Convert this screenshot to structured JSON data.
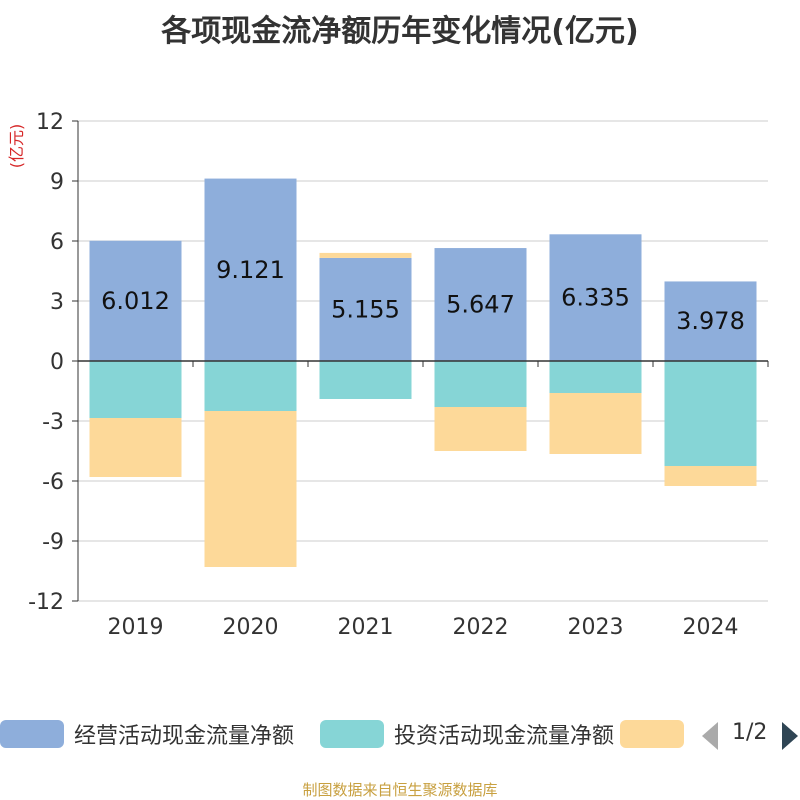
{
  "title": "各项现金流净额历年变化情况(亿元)",
  "source": "制图数据来自恒生聚源数据库",
  "pager": {
    "text": "1/2"
  },
  "legend": [
    {
      "label": "经营活动现金流量净额",
      "color": "#8eaedb"
    },
    {
      "label": "投资活动现金流量净额",
      "color": "#86d5d6"
    },
    {
      "label": "",
      "color": "#fdd999"
    }
  ],
  "chart_data": {
    "type": "bar",
    "stacked": true,
    "title": "各项现金流净额历年变化情况(亿元)",
    "ylabel": "(亿元)",
    "ylim": [
      -12,
      12
    ],
    "yticks": [
      12,
      9,
      6,
      3,
      0,
      -3,
      -6,
      -9,
      -12
    ],
    "grid": true,
    "legend_position": "bottom",
    "categories": [
      "2019",
      "2020",
      "2021",
      "2022",
      "2023",
      "2024"
    ],
    "series": [
      {
        "name": "经营活动现金流量净额",
        "color": "#8eaedb",
        "values": [
          6.012,
          9.121,
          5.155,
          5.647,
          6.335,
          3.978
        ],
        "labels": [
          "6.012",
          "9.121",
          "5.155",
          "5.647",
          "6.335",
          "3.978"
        ]
      },
      {
        "name": "投资活动现金流量净额",
        "color": "#86d5d6",
        "values": [
          -2.85,
          -2.5,
          -1.9,
          -2.3,
          -1.6,
          -5.25
        ]
      },
      {
        "color": "#fdd999",
        "values": [
          -2.95,
          -7.8,
          0.25,
          -2.2,
          -3.05,
          -1.0
        ]
      }
    ]
  }
}
